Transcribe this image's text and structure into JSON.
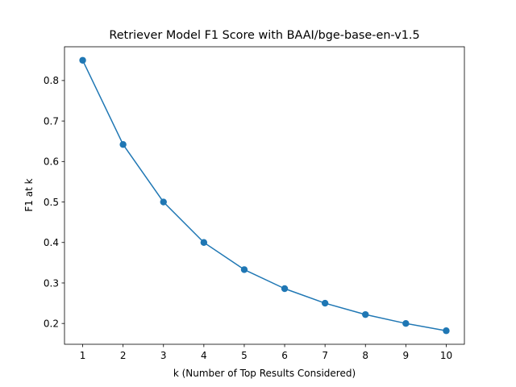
{
  "chart_data": {
    "type": "line",
    "title": "Retriever Model F1 Score with BAAI/bge-base-en-v1.5",
    "xlabel": "k (Number of Top Results Considered)",
    "ylabel": "F1 at k",
    "x": [
      1,
      2,
      3,
      4,
      5,
      6,
      7,
      8,
      9,
      10
    ],
    "series": [
      {
        "values": [
          0.85,
          0.642,
          0.5,
          0.4,
          0.333,
          0.286,
          0.25,
          0.222,
          0.2,
          0.182
        ]
      }
    ],
    "xlim": [
      0.55,
      10.45
    ],
    "ylim": [
      0.1486,
      0.8834
    ],
    "xticks": [
      "1",
      "2",
      "3",
      "4",
      "5",
      "6",
      "7",
      "8",
      "9",
      "10"
    ],
    "yticks": [
      "0.2",
      "0.3",
      "0.4",
      "0.5",
      "0.6",
      "0.7",
      "0.8"
    ],
    "yticks_values": [
      0.2,
      0.3,
      0.4,
      0.5,
      0.6,
      0.7,
      0.8
    ],
    "markers": true,
    "grid": false,
    "legend": "none",
    "color": "#1f77b4"
  }
}
